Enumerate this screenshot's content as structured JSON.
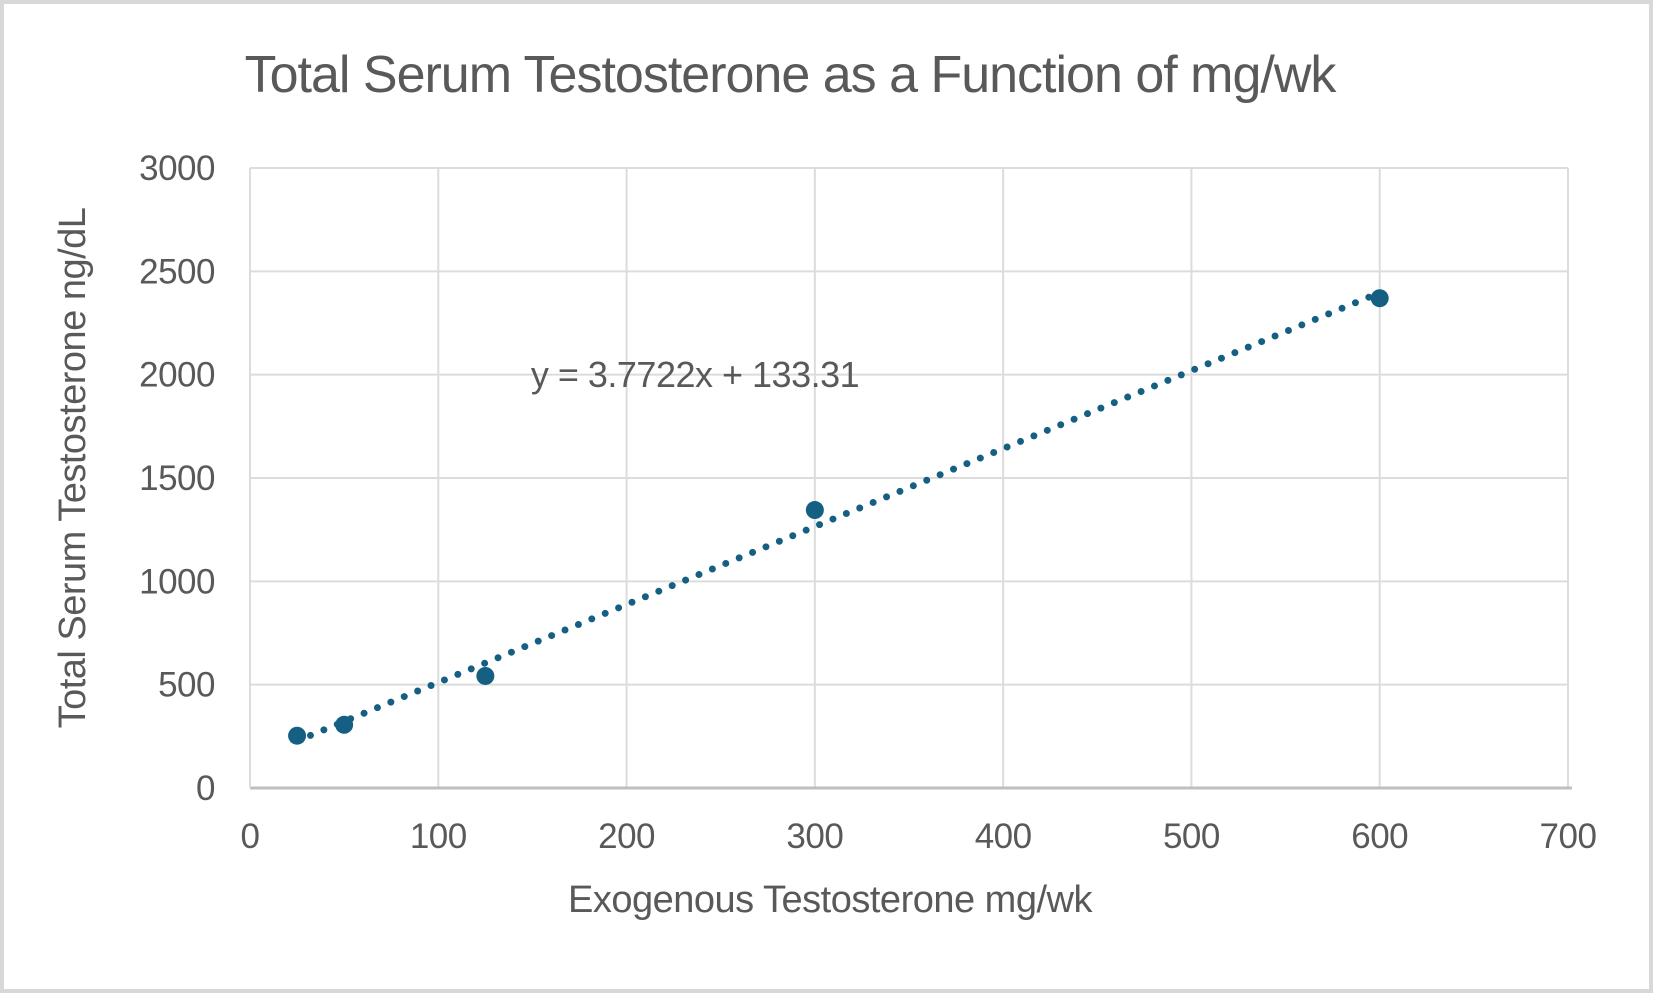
{
  "chart_data": {
    "type": "scatter",
    "title": "Total Serum Testosterone as a Function of mg/wk",
    "xlabel": "Exogenous Testosterone mg/wk",
    "ylabel": "Total Serum Testosterone ng/dL",
    "points": [
      {
        "x": 25,
        "y": 253
      },
      {
        "x": 50,
        "y": 306
      },
      {
        "x": 125,
        "y": 542
      },
      {
        "x": 300,
        "y": 1345
      },
      {
        "x": 600,
        "y": 2370
      }
    ],
    "trendline": {
      "label": "y = 3.7722x + 133.31",
      "slope": 3.7722,
      "intercept": 133.31,
      "x_start": 25,
      "x_end": 600,
      "style": "dotted"
    },
    "xlim": [
      0,
      700
    ],
    "ylim": [
      0,
      3000
    ],
    "x_ticks": [
      0,
      100,
      200,
      300,
      400,
      500,
      600,
      700
    ],
    "y_ticks": [
      0,
      500,
      1000,
      1500,
      2000,
      2500,
      3000
    ],
    "grid": true,
    "legend": "none",
    "colors": {
      "marker": "#156082",
      "trendline": "#156082",
      "gridline": "#dcdcdc",
      "axis_line": "#bfbfbf",
      "text": "#595959",
      "background": "#ffffff",
      "frame_border": "#d8d8d8"
    }
  }
}
